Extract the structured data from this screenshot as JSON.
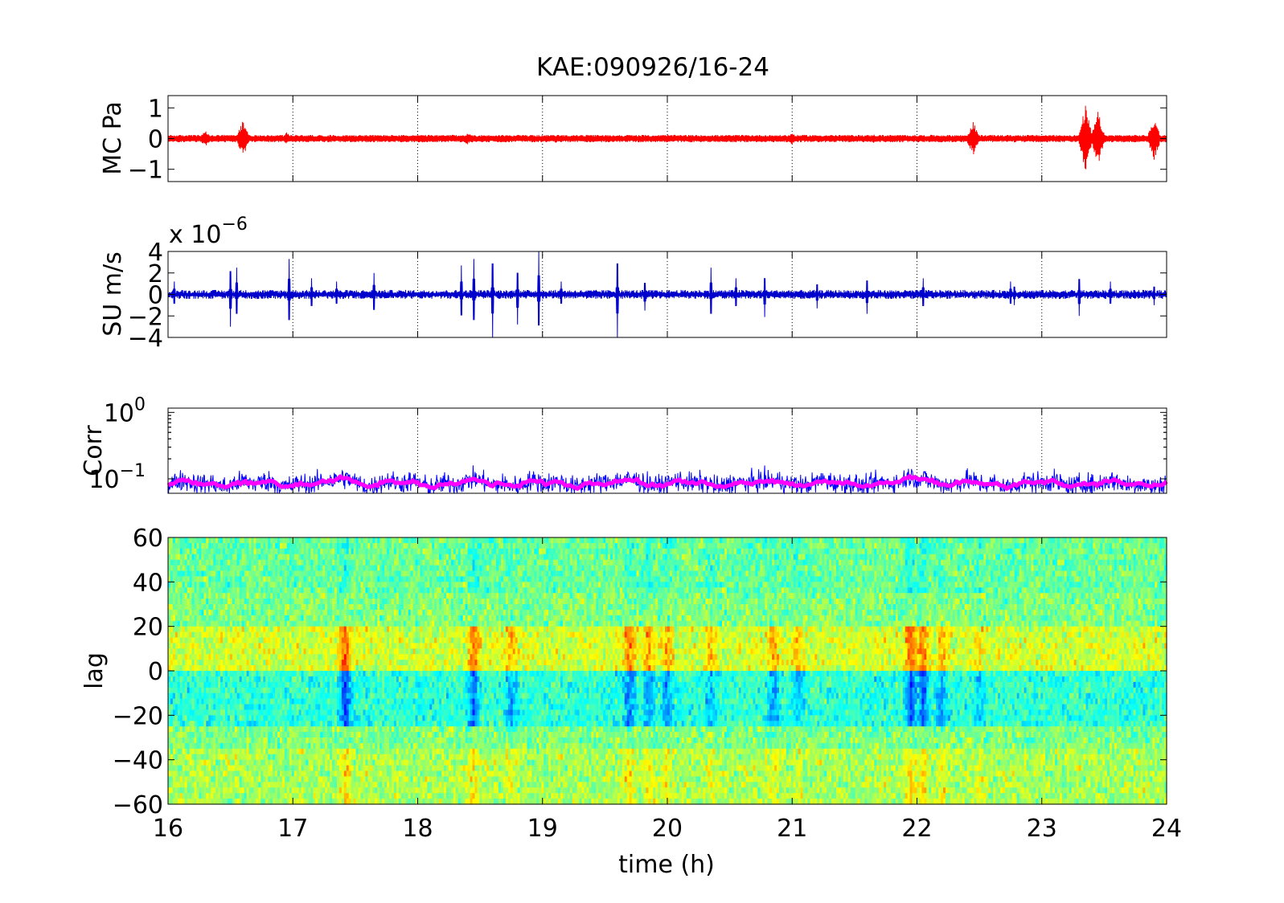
{
  "figure": {
    "title": "KAE:090926/16-24"
  },
  "chart_data": [
    {
      "type": "line",
      "panel": "MC Pa",
      "ylabel": "MC Pa",
      "xlim": [
        16,
        24
      ],
      "ylim": [
        -1.4,
        1.4
      ],
      "yticks": [
        -1,
        0,
        1
      ],
      "ytick_labels": [
        "−1",
        "0",
        "1"
      ],
      "grid": "vertical dotted at hours",
      "series": [
        {
          "color": "#ff0000",
          "baseline_amplitude": 0.12,
          "bursts": [
            [
              16.3,
              0.25
            ],
            [
              16.6,
              0.6
            ],
            [
              16.95,
              0.2
            ],
            [
              18.4,
              0.2
            ],
            [
              19.1,
              0.15
            ],
            [
              20.0,
              0.15
            ],
            [
              21.0,
              0.2
            ],
            [
              21.65,
              0.15
            ],
            [
              22.45,
              0.55
            ],
            [
              23.35,
              1.1
            ],
            [
              23.45,
              0.9
            ],
            [
              23.9,
              0.7
            ]
          ]
        }
      ]
    },
    {
      "type": "line",
      "panel": "SU m/s",
      "ylabel": "SU m/s",
      "ymultiplier": "x 10",
      "ymultiplier_exp": "−6",
      "xlim": [
        16,
        24
      ],
      "ylim": [
        -4,
        4
      ],
      "yticks": [
        -4,
        -2,
        0,
        2,
        4
      ],
      "ytick_labels": [
        "−4",
        "−2",
        "0",
        "2",
        "4"
      ],
      "grid": "vertical dotted at hours",
      "series": [
        {
          "color": "#0000cd",
          "baseline_amplitude": 0.3,
          "spikes": [
            [
              16.05,
              1.2
            ],
            [
              16.5,
              3.0
            ],
            [
              16.55,
              2.5
            ],
            [
              16.97,
              3.3
            ],
            [
              17.15,
              1.5
            ],
            [
              17.35,
              1.2
            ],
            [
              17.65,
              2.0
            ],
            [
              18.35,
              2.7
            ],
            [
              18.45,
              3.3
            ],
            [
              18.6,
              4.0
            ],
            [
              18.8,
              2.8
            ],
            [
              18.97,
              4.0
            ],
            [
              19.15,
              1.2
            ],
            [
              19.6,
              4.0
            ],
            [
              19.82,
              1.5
            ],
            [
              20.35,
              2.5
            ],
            [
              20.55,
              1.5
            ],
            [
              20.78,
              2.1
            ],
            [
              21.2,
              1.3
            ],
            [
              21.6,
              1.8
            ],
            [
              22.05,
              1.5
            ],
            [
              22.75,
              1.2
            ],
            [
              22.78,
              1.0
            ],
            [
              23.3,
              2.0
            ],
            [
              23.55,
              1.2
            ],
            [
              23.9,
              1.0
            ]
          ]
        }
      ]
    },
    {
      "type": "line",
      "panel": "Corr",
      "ylabel": "Corr",
      "yscale": "log",
      "xlim": [
        16,
        24
      ],
      "ylim": [
        0.0606,
        1.16
      ],
      "yticks": [
        0.1,
        1
      ],
      "ytick_labels": [
        {
          "base": "10",
          "exp": "−1"
        },
        {
          "base": "10",
          "exp": "0"
        }
      ],
      "grid": "vertical dotted at hours",
      "series": [
        {
          "color": "#0000ff",
          "style": "raw"
        },
        {
          "color": "#ff00ff",
          "style": "smoothed",
          "base": 0.085,
          "bumps": [
            [
              17.4,
              0.105
            ],
            [
              18.45,
              0.1
            ],
            [
              19.7,
              0.1
            ],
            [
              20.85,
              0.095
            ],
            [
              21.95,
              0.11
            ],
            [
              22.05,
              0.1
            ]
          ]
        }
      ]
    },
    {
      "type": "heatmap",
      "panel": "lag",
      "ylabel": "lag",
      "xlabel": "time (h)",
      "xlim": [
        16,
        24
      ],
      "ylim": [
        -60,
        60
      ],
      "yticks": [
        -60,
        -40,
        -20,
        0,
        20,
        40,
        60
      ],
      "ytick_labels": [
        "−60",
        "−40",
        "−20",
        "0",
        "20",
        "40",
        "60"
      ],
      "xticks": [
        16,
        17,
        18,
        19,
        20,
        21,
        22,
        23,
        24
      ],
      "xtick_labels": [
        "16",
        "17",
        "18",
        "19",
        "20",
        "21",
        "22",
        "23",
        "24"
      ],
      "colormap": "jet",
      "structure": "positive band at lag 0..20, negative band at lag -25..0",
      "events": [
        [
          17.42,
          1.0
        ],
        [
          18.45,
          0.9
        ],
        [
          18.75,
          0.6
        ],
        [
          19.7,
          0.8
        ],
        [
          19.85,
          0.7
        ],
        [
          20.0,
          0.7
        ],
        [
          20.35,
          0.5
        ],
        [
          20.85,
          0.6
        ],
        [
          21.05,
          0.5
        ],
        [
          21.95,
          1.0
        ],
        [
          22.05,
          0.9
        ],
        [
          22.2,
          0.6
        ],
        [
          22.5,
          0.4
        ]
      ]
    }
  ]
}
